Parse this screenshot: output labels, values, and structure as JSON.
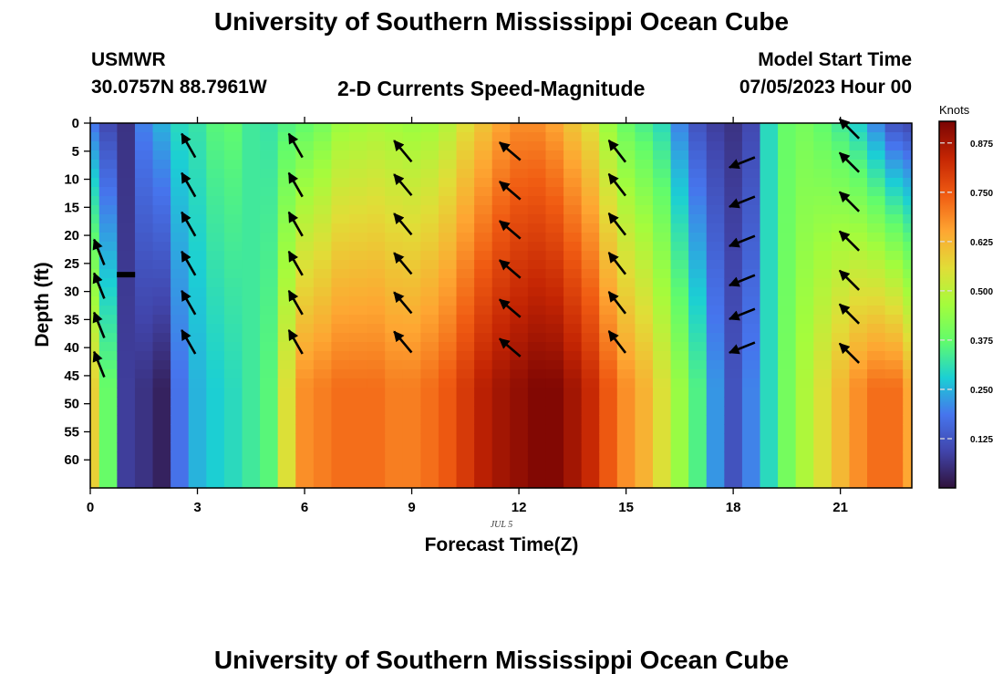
{
  "header": {
    "title": "University of Southern Mississippi Ocean Cube",
    "station": "USMWR",
    "coords": "30.0757N  88.7961W",
    "plot_title": "2-D Currents Speed-Magnitude",
    "start_label": "Model Start Time",
    "start_value": "07/05/2023 Hour 00"
  },
  "footer": {
    "title": "University of Southern Mississippi Ocean Cube"
  },
  "chart_data": {
    "type": "heatmap",
    "xlabel": "Forecast Time(Z)",
    "ylabel": "Depth (ft)",
    "date_label": "JUL 5",
    "xlim": [
      0,
      23
    ],
    "ylim": [
      0,
      65
    ],
    "x_ticks": [
      0,
      3,
      6,
      9,
      12,
      15,
      18,
      21
    ],
    "y_ticks": [
      0,
      5,
      10,
      15,
      20,
      25,
      30,
      35,
      40,
      45,
      50,
      55,
      60
    ],
    "colorbar": {
      "unit": "Knots",
      "min": 0,
      "max": 0.93,
      "ticks": [
        "0.125",
        "0.250",
        "0.375",
        "0.500",
        "0.625",
        "0.750",
        "0.875"
      ]
    },
    "speed_by_hour": {
      "hours": [
        0,
        0.5,
        1,
        1.5,
        2,
        2.5,
        3,
        3.5,
        4,
        4.5,
        5,
        5.5,
        6,
        6.5,
        7,
        7.5,
        8,
        8.5,
        9,
        9.5,
        10,
        10.5,
        11,
        11.5,
        12,
        12.5,
        13,
        13.5,
        14,
        14.5,
        15,
        15.5,
        16,
        16.5,
        17,
        17.5,
        18,
        18.5,
        19,
        19.5,
        20,
        20.5,
        21,
        21.5,
        22,
        22.5,
        23
      ],
      "surface": [
        0.18,
        0.1,
        0.06,
        0.2,
        0.25,
        0.3,
        0.32,
        0.36,
        0.37,
        0.33,
        0.32,
        0.35,
        0.37,
        0.4,
        0.45,
        0.46,
        0.47,
        0.46,
        0.45,
        0.46,
        0.49,
        0.55,
        0.6,
        0.65,
        0.68,
        0.68,
        0.65,
        0.6,
        0.55,
        0.45,
        0.38,
        0.34,
        0.3,
        0.2,
        0.12,
        0.08,
        0.06,
        0.1,
        0.3,
        0.38,
        0.4,
        0.37,
        0.33,
        0.28,
        0.2,
        0.12,
        0.1
      ],
      "bottom": [
        0.58,
        0.38,
        0.08,
        0.06,
        0.03,
        0.18,
        0.25,
        0.28,
        0.3,
        0.33,
        0.36,
        0.55,
        0.68,
        0.7,
        0.72,
        0.72,
        0.72,
        0.7,
        0.7,
        0.72,
        0.75,
        0.8,
        0.85,
        0.88,
        0.9,
        0.92,
        0.92,
        0.88,
        0.83,
        0.75,
        0.68,
        0.63,
        0.55,
        0.45,
        0.35,
        0.22,
        0.12,
        0.2,
        0.3,
        0.4,
        0.48,
        0.55,
        0.62,
        0.68,
        0.72,
        0.72,
        0.65
      ]
    },
    "vectors": [
      {
        "hour": 0.25,
        "depths": [
          23,
          29,
          36,
          43
        ],
        "dir": [
          1,
          2.5
        ]
      },
      {
        "hour": 2.75,
        "depths": [
          4,
          11,
          18,
          25,
          32,
          39
        ],
        "dir": [
          1,
          1.75
        ]
      },
      {
        "hour": 5.75,
        "depths": [
          4,
          11,
          18,
          25,
          32,
          39
        ],
        "dir": [
          1,
          1.75
        ]
      },
      {
        "hour": 8.75,
        "depths": [
          5,
          11,
          18,
          25,
          32,
          39
        ],
        "dir": [
          1,
          1.2
        ]
      },
      {
        "hour": 11.75,
        "depths": [
          5,
          12,
          19,
          26,
          33,
          40
        ],
        "dir": [
          1,
          0.85
        ]
      },
      {
        "hour": 14.75,
        "depths": [
          5,
          11,
          18,
          25,
          32,
          39
        ],
        "dir": [
          1,
          1.3
        ]
      },
      {
        "hour": 18.25,
        "depths": [
          7,
          14,
          21,
          28,
          34,
          40
        ],
        "dir": [
          1,
          -0.4
        ]
      },
      {
        "hour": 21.25,
        "depths": [
          1,
          7,
          14,
          21,
          28,
          34,
          41
        ],
        "dir": [
          1,
          1.0
        ]
      }
    ],
    "marker": {
      "hour": 1,
      "depth": 27
    }
  }
}
